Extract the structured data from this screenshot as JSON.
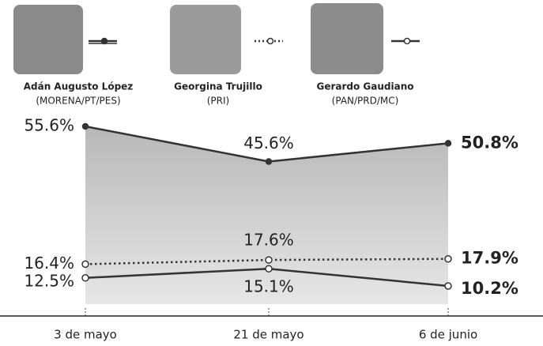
{
  "chart_data": {
    "type": "line",
    "categories": [
      "3 de mayo",
      "21 de mayo",
      "6 de junio"
    ],
    "series": [
      {
        "name": "Adán Augusto López",
        "party": "(MORENA/PT/PES)",
        "color": "#333333",
        "dash": false,
        "marker": "filled",
        "area": true,
        "values": [
          55.6,
          45.6,
          50.8
        ],
        "value_labels": [
          "55.6%",
          "45.6%",
          "50.8%"
        ]
      },
      {
        "name": "Georgina Trujillo",
        "party": "(PRI)",
        "color": "#333333",
        "dash": true,
        "marker": "hollow",
        "area": false,
        "values": [
          16.4,
          17.6,
          17.9
        ],
        "value_labels": [
          "16.4%",
          "17.6%",
          "17.9%"
        ]
      },
      {
        "name": "Gerardo Gaudiano",
        "party": "(PAN/PRD/MC)",
        "color": "#333333",
        "dash": false,
        "marker": "hollow",
        "area": false,
        "values": [
          12.5,
          15.1,
          10.2
        ],
        "value_labels": [
          "12.5%",
          "15.1%",
          "10.2%"
        ]
      }
    ]
  }
}
